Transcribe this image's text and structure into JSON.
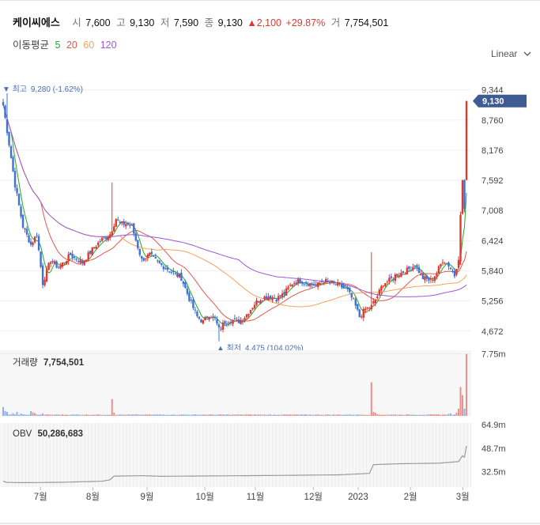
{
  "header": {
    "name": "케이씨에스",
    "open_label": "시",
    "open": "7,600",
    "high_label": "고",
    "high": "9,130",
    "low_label": "저",
    "low": "7,590",
    "close_label": "종",
    "close": "9,130",
    "change": "▲2,100",
    "change_pct": "+29.87%",
    "volume_label": "거",
    "volume": "7,754,501"
  },
  "ma_legend": {
    "label": "이동평균",
    "periods": [
      {
        "period": "5",
        "color": "#2aa52a"
      },
      {
        "period": "20",
        "color": "#e3564e"
      },
      {
        "period": "60",
        "color": "#f3a35e"
      },
      {
        "period": "120",
        "color": "#9b59d8"
      }
    ]
  },
  "scale_toggle": {
    "label": "Linear",
    "icon": "chevron-down-icon"
  },
  "colors": {
    "up": "#e0382f",
    "down": "#3e71d6",
    "price_tag": "#3e5b93",
    "obv": "#9a9a9a"
  },
  "annotations": {
    "high": {
      "prefix": "▼ 최고",
      "value": "9,280 (-1.62%)"
    },
    "low": {
      "prefix": "▲ 최저",
      "value": "4,475 (104.02%)"
    }
  },
  "current_price_tag": "9,130",
  "volume_panel": {
    "label": "거래량",
    "value": "7,754,501",
    "axis_ticks": [
      "7.75m"
    ],
    "axis_values": [
      7.75
    ]
  },
  "obv_panel": {
    "label": "OBV",
    "value": "50,286,683",
    "axis_ticks": [
      "64.9m",
      "48.7m",
      "32.5m"
    ],
    "axis_values": [
      64.9,
      48.7,
      32.5
    ]
  },
  "x_axis_labels": [
    "7월",
    "8월",
    "9월",
    "10월",
    "11월",
    "12월",
    "2023",
    "2월",
    "3월"
  ],
  "chart_data": [
    {
      "type": "candlestick",
      "title": "케이씨에스",
      "yticks": [
        "9,344",
        "8,760",
        "8,176",
        "7,592",
        "7,008",
        "6,424",
        "5,840",
        "5,256",
        "4,672"
      ],
      "ytick_values": [
        9344,
        8760,
        8176,
        7592,
        7008,
        6424,
        5840,
        5256,
        4672
      ],
      "ylim": [
        4500,
        9600
      ],
      "x_labels": [
        "7월",
        "8월",
        "9월",
        "10월",
        "11월",
        "12월",
        "2023",
        "2월",
        "3월"
      ],
      "anchors": [
        {
          "i": 0,
          "c": 9050
        },
        {
          "i": 3,
          "c": 8300
        },
        {
          "i": 6,
          "c": 7500
        },
        {
          "i": 10,
          "c": 6700
        },
        {
          "i": 14,
          "c": 6350
        },
        {
          "i": 17,
          "c": 6550
        },
        {
          "i": 20,
          "c": 5600
        },
        {
          "i": 24,
          "c": 6050
        },
        {
          "i": 28,
          "c": 5900
        },
        {
          "i": 34,
          "c": 6150
        },
        {
          "i": 40,
          "c": 6000
        },
        {
          "i": 46,
          "c": 6300
        },
        {
          "i": 50,
          "c": 6450
        },
        {
          "i": 54,
          "c": 6550
        },
        {
          "i": 57,
          "c": 6850
        },
        {
          "i": 59,
          "c": 6750
        },
        {
          "i": 62,
          "c": 6750
        },
        {
          "i": 65,
          "c": 6700
        },
        {
          "i": 68,
          "c": 6300
        },
        {
          "i": 70,
          "c": 6050
        },
        {
          "i": 74,
          "c": 6150
        },
        {
          "i": 78,
          "c": 6000
        },
        {
          "i": 82,
          "c": 5900
        },
        {
          "i": 86,
          "c": 5800
        },
        {
          "i": 90,
          "c": 5700
        },
        {
          "i": 94,
          "c": 5300
        },
        {
          "i": 98,
          "c": 4950
        },
        {
          "i": 101,
          "c": 4850
        },
        {
          "i": 104,
          "c": 5000
        },
        {
          "i": 107,
          "c": 4900
        },
        {
          "i": 109,
          "c": 4700
        },
        {
          "i": 112,
          "c": 4850
        },
        {
          "i": 115,
          "c": 4900
        },
        {
          "i": 118,
          "c": 4850
        },
        {
          "i": 121,
          "c": 4900
        },
        {
          "i": 124,
          "c": 5050
        },
        {
          "i": 127,
          "c": 5200
        },
        {
          "i": 130,
          "c": 5300
        },
        {
          "i": 134,
          "c": 5350
        },
        {
          "i": 138,
          "c": 5300
        },
        {
          "i": 142,
          "c": 5400
        },
        {
          "i": 146,
          "c": 5600
        },
        {
          "i": 150,
          "c": 5650
        },
        {
          "i": 154,
          "c": 5600
        },
        {
          "i": 158,
          "c": 5550
        },
        {
          "i": 162,
          "c": 5650
        },
        {
          "i": 166,
          "c": 5600
        },
        {
          "i": 170,
          "c": 5550
        },
        {
          "i": 174,
          "c": 5450
        },
        {
          "i": 177,
          "c": 5250
        },
        {
          "i": 180,
          "c": 4950
        },
        {
          "i": 183,
          "c": 5100
        },
        {
          "i": 186,
          "c": 5150
        },
        {
          "i": 189,
          "c": 5350
        },
        {
          "i": 192,
          "c": 5600
        },
        {
          "i": 195,
          "c": 5650
        },
        {
          "i": 198,
          "c": 5750
        },
        {
          "i": 201,
          "c": 5800
        },
        {
          "i": 204,
          "c": 5850
        },
        {
          "i": 208,
          "c": 5950
        },
        {
          "i": 212,
          "c": 5700
        },
        {
          "i": 216,
          "c": 5650
        },
        {
          "i": 219,
          "c": 5800
        },
        {
          "i": 222,
          "c": 6050
        },
        {
          "i": 225,
          "c": 5950
        },
        {
          "i": 228,
          "c": 5750
        },
        {
          "i": 230,
          "c": 6100
        },
        {
          "i": 231,
          "c": 6900
        },
        {
          "i": 232,
          "c": 7600
        },
        {
          "i": 233,
          "c": 7030
        },
        {
          "i": 234,
          "c": 9130
        }
      ],
      "last_candle": {
        "open": 7600,
        "high": 9130,
        "low": 7590,
        "close": 9130
      },
      "spikes": [
        {
          "i": 2,
          "h": 9280
        },
        {
          "i": 55,
          "h": 7550
        },
        {
          "i": 109,
          "l": 4475
        },
        {
          "i": 186,
          "h": 6200
        }
      ]
    },
    {
      "type": "bar",
      "title": "거래량",
      "unit": "m",
      "ylim": [
        0,
        8.2
      ],
      "series": [
        {
          "values_sparse": [
            {
              "i": 0,
              "v": 1.1
            },
            {
              "i": 1,
              "v": 0.6
            },
            {
              "i": 2,
              "v": 0.5
            },
            {
              "i": 5,
              "v": 0.35
            },
            {
              "i": 7,
              "v": 0.5
            },
            {
              "i": 9,
              "v": 0.3
            },
            {
              "i": 14,
              "v": 0.6
            },
            {
              "i": 15,
              "v": 0.45
            },
            {
              "i": 16,
              "v": 0.35
            },
            {
              "i": 20,
              "v": 0.3
            },
            {
              "i": 55,
              "v": 2.1
            },
            {
              "i": 56,
              "v": 0.4
            },
            {
              "i": 186,
              "v": 4.2
            },
            {
              "i": 187,
              "v": 0.5
            },
            {
              "i": 188,
              "v": 0.4
            },
            {
              "i": 225,
              "v": 0.25
            },
            {
              "i": 226,
              "v": 0.3
            },
            {
              "i": 229,
              "v": 0.4
            },
            {
              "i": 230,
              "v": 0.9
            },
            {
              "i": 231,
              "v": 3.6
            },
            {
              "i": 232,
              "v": 2.6
            },
            {
              "i": 233,
              "v": 0.9
            },
            {
              "i": 234,
              "v": 7.75
            }
          ],
          "base": 0.12
        }
      ]
    },
    {
      "type": "line",
      "title": "OBV",
      "unit": "m",
      "ylim": [
        22,
        66
      ],
      "points": [
        {
          "i": 0,
          "v": 26.0
        },
        {
          "i": 2,
          "v": 25.2
        },
        {
          "i": 10,
          "v": 25.0
        },
        {
          "i": 30,
          "v": 25.3
        },
        {
          "i": 50,
          "v": 26.0
        },
        {
          "i": 54,
          "v": 27.0
        },
        {
          "i": 56,
          "v": 29.5
        },
        {
          "i": 60,
          "v": 29.6
        },
        {
          "i": 70,
          "v": 29.8
        },
        {
          "i": 80,
          "v": 29.4
        },
        {
          "i": 100,
          "v": 29.6
        },
        {
          "i": 140,
          "v": 30.0
        },
        {
          "i": 170,
          "v": 30.4
        },
        {
          "i": 185,
          "v": 31.4
        },
        {
          "i": 187,
          "v": 37.4
        },
        {
          "i": 200,
          "v": 38.0
        },
        {
          "i": 220,
          "v": 38.4
        },
        {
          "i": 230,
          "v": 39.5
        },
        {
          "i": 232,
          "v": 43.5
        },
        {
          "i": 233,
          "v": 42.5
        },
        {
          "i": 234,
          "v": 50.3
        }
      ]
    }
  ]
}
